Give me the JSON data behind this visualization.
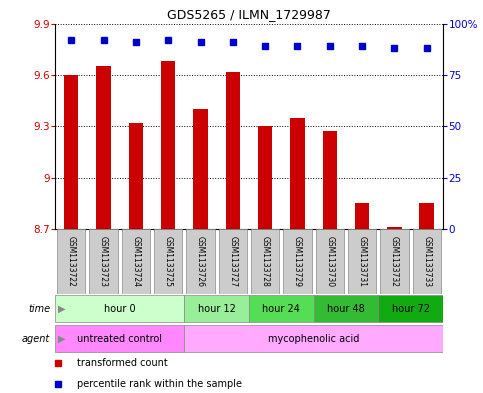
{
  "title": "GDS5265 / ILMN_1729987",
  "samples": [
    "GSM1133722",
    "GSM1133723",
    "GSM1133724",
    "GSM1133725",
    "GSM1133726",
    "GSM1133727",
    "GSM1133728",
    "GSM1133729",
    "GSM1133730",
    "GSM1133731",
    "GSM1133732",
    "GSM1133733"
  ],
  "transformed_count": [
    9.6,
    9.65,
    9.32,
    9.68,
    9.4,
    9.62,
    9.3,
    9.35,
    9.27,
    8.85,
    8.715,
    8.85
  ],
  "percentile_rank": [
    92,
    92,
    91,
    92,
    91,
    91,
    89,
    89,
    89,
    89,
    88,
    88
  ],
  "ylim_left": [
    8.7,
    9.9
  ],
  "ylim_right": [
    0,
    100
  ],
  "yticks_left": [
    8.7,
    9.0,
    9.3,
    9.6,
    9.9
  ],
  "ytick_labels_left": [
    "8.7",
    "9",
    "9.3",
    "9.6",
    "9.9"
  ],
  "yticks_right": [
    0,
    25,
    50,
    75,
    100
  ],
  "ytick_labels_right": [
    "0",
    "25",
    "50",
    "75",
    "100%"
  ],
  "bar_color": "#cc0000",
  "marker_color": "#0000cc",
  "time_groups": [
    {
      "label": "hour 0",
      "start": 0,
      "end": 4,
      "color": "#ccffcc"
    },
    {
      "label": "hour 12",
      "start": 4,
      "end": 6,
      "color": "#99ee99"
    },
    {
      "label": "hour 24",
      "start": 6,
      "end": 8,
      "color": "#55dd55"
    },
    {
      "label": "hour 48",
      "start": 8,
      "end": 10,
      "color": "#33bb33"
    },
    {
      "label": "hour 72",
      "start": 10,
      "end": 12,
      "color": "#11aa11"
    }
  ],
  "agent_groups": [
    {
      "label": "untreated control",
      "start": 0,
      "end": 4,
      "color": "#ff88ff"
    },
    {
      "label": "mycophenolic acid",
      "start": 4,
      "end": 12,
      "color": "#ffaaff"
    }
  ],
  "sample_bg_color": "#cccccc",
  "legend_bar_label": "transformed count",
  "legend_marker_label": "percentile rank within the sample"
}
